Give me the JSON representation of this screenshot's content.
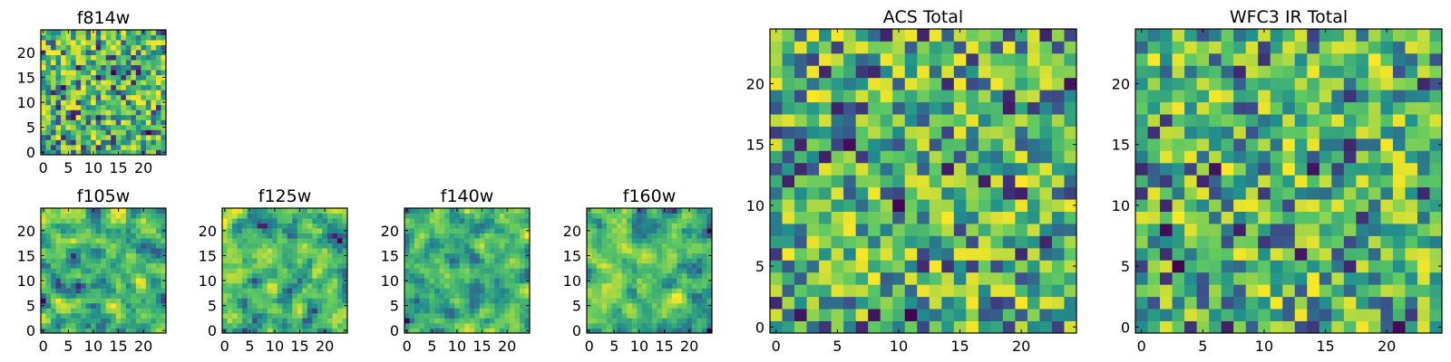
{
  "figure": {
    "width": 1600,
    "height": 400
  },
  "chart_data": [
    {
      "type": "heatmap",
      "id": "f814w",
      "title": "f814w",
      "grid": 25,
      "xticks": [
        0,
        5,
        10,
        15,
        20
      ],
      "yticks": [
        0,
        5,
        10,
        15,
        20
      ],
      "seed": 11,
      "style": "fine"
    },
    {
      "type": "heatmap",
      "id": "f105w",
      "title": "f105w",
      "grid": 25,
      "xticks": [
        0,
        5,
        10,
        15,
        20
      ],
      "yticks": [
        0,
        5,
        10,
        15,
        20
      ],
      "seed": 23,
      "style": "smooth"
    },
    {
      "type": "heatmap",
      "id": "f125w",
      "title": "f125w",
      "grid": 25,
      "xticks": [
        0,
        5,
        10,
        15,
        20
      ],
      "yticks": [
        0,
        5,
        10,
        15,
        20
      ],
      "seed": 37,
      "style": "smooth"
    },
    {
      "type": "heatmap",
      "id": "f140w",
      "title": "f140w",
      "grid": 25,
      "xticks": [
        0,
        5,
        10,
        15,
        20
      ],
      "yticks": [
        0,
        5,
        10,
        15,
        20
      ],
      "seed": 41,
      "style": "smooth"
    },
    {
      "type": "heatmap",
      "id": "f160w",
      "title": "f160w",
      "grid": 25,
      "xticks": [
        0,
        5,
        10,
        15,
        20
      ],
      "yticks": [
        0,
        5,
        10,
        15,
        20
      ],
      "seed": 53,
      "style": "smooth"
    },
    {
      "type": "heatmap",
      "id": "acs-total",
      "title": "ACS Total",
      "grid": 25,
      "xticks": [
        0,
        5,
        10,
        15,
        20
      ],
      "yticks": [
        0,
        5,
        10,
        15,
        20
      ],
      "seed": 67,
      "style": "fine"
    },
    {
      "type": "heatmap",
      "id": "wfc3-ir-total",
      "title": "WFC3 IR Total",
      "grid": 25,
      "xticks": [
        0,
        5,
        10,
        15,
        20
      ],
      "yticks": [
        0,
        5,
        10,
        15,
        20
      ],
      "seed": 79,
      "style": "fine"
    }
  ],
  "colormap": [
    "#440154",
    "#3b528b",
    "#21918c",
    "#5ec962",
    "#fde725"
  ]
}
